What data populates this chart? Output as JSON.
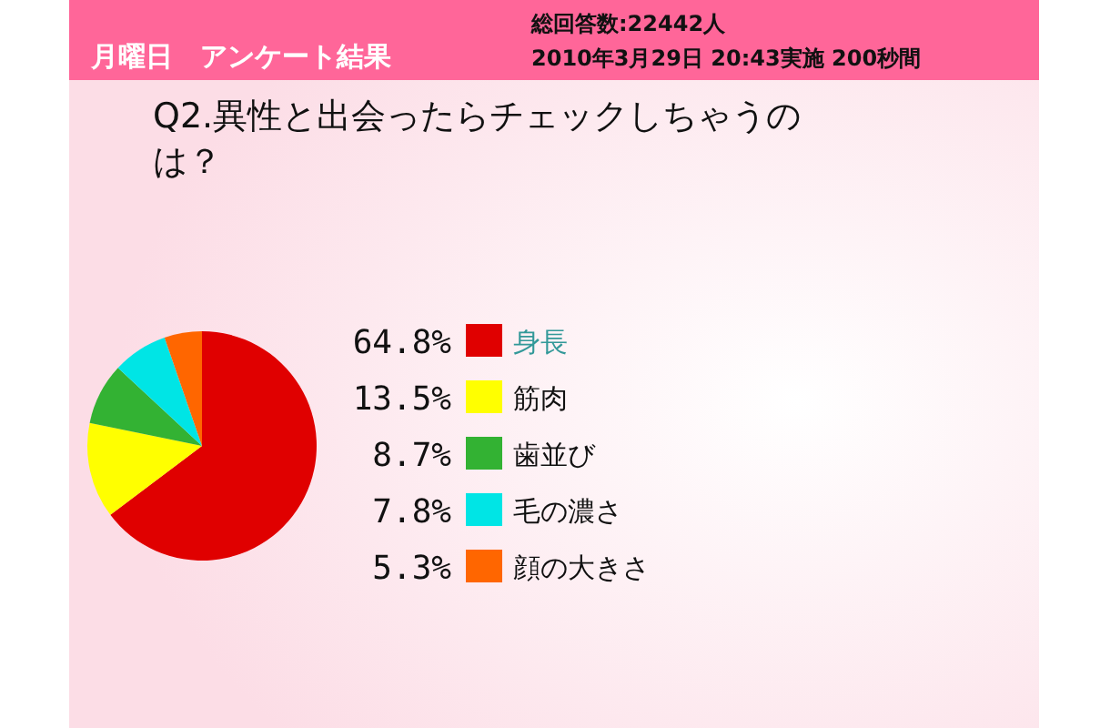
{
  "chart_data": {
    "type": "pie",
    "title": "Q2.異性と出会ったらチェックしちゃうのは？",
    "subtitle": "月曜日　アンケート結果",
    "annotations": [
      "総回答数:22442人",
      "2010年3月29日 20:43実施 200秒間"
    ],
    "categories": [
      "身長",
      "筋肉",
      "歯並び",
      "毛の濃さ",
      "顔の大きさ"
    ],
    "values": [
      64.8,
      13.5,
      8.7,
      7.8,
      5.3
    ],
    "value_labels": [
      "64.8%",
      "13.5%",
      "8.7%",
      "7.8%",
      "5.3%"
    ],
    "colors": [
      "#e00000",
      "#ffff00",
      "#33b233",
      "#00e5e5",
      "#ff6600"
    ],
    "legend": "right"
  }
}
